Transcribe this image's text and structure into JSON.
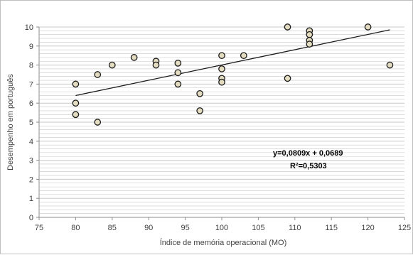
{
  "chart_data": {
    "type": "scatter",
    "title": "",
    "xlabel": "Índice de memória operacional (MO)",
    "ylabel": "Desempenho em português",
    "xlim": [
      75,
      125
    ],
    "ylim": [
      0,
      10
    ],
    "x_ticks": [
      75,
      80,
      85,
      90,
      95,
      100,
      105,
      110,
      115,
      120,
      125
    ],
    "y_ticks": [
      0,
      1,
      2,
      3,
      4,
      5,
      6,
      7,
      8,
      9,
      10
    ],
    "grid": true,
    "legend": "none",
    "points": [
      {
        "x": 80,
        "y": 7.0
      },
      {
        "x": 80,
        "y": 6.0
      },
      {
        "x": 80,
        "y": 5.4
      },
      {
        "x": 83,
        "y": 7.5
      },
      {
        "x": 83,
        "y": 5.0
      },
      {
        "x": 85,
        "y": 8.0
      },
      {
        "x": 88,
        "y": 8.4
      },
      {
        "x": 91,
        "y": 8.2
      },
      {
        "x": 91,
        "y": 8.0
      },
      {
        "x": 94,
        "y": 8.1
      },
      {
        "x": 94,
        "y": 7.6
      },
      {
        "x": 94,
        "y": 7.0
      },
      {
        "x": 97,
        "y": 6.5
      },
      {
        "x": 97,
        "y": 5.6
      },
      {
        "x": 100,
        "y": 8.5
      },
      {
        "x": 100,
        "y": 7.8
      },
      {
        "x": 100,
        "y": 7.3
      },
      {
        "x": 100,
        "y": 7.1
      },
      {
        "x": 103,
        "y": 8.5
      },
      {
        "x": 109,
        "y": 10.0
      },
      {
        "x": 109,
        "y": 7.3
      },
      {
        "x": 112,
        "y": 9.8
      },
      {
        "x": 112,
        "y": 9.6
      },
      {
        "x": 112,
        "y": 9.3
      },
      {
        "x": 112,
        "y": 9.1
      },
      {
        "x": 120,
        "y": 10.0
      },
      {
        "x": 123,
        "y": 8.0
      }
    ],
    "trendline": {
      "x": [
        80,
        123
      ],
      "y": [
        6.4,
        9.85
      ]
    },
    "annotations": {
      "equation": "y=0,0809x + 0,0689",
      "r_squared": "R²=0,5303"
    },
    "colors": {
      "marker_fill": "#e3dcc0",
      "marker_stroke": "#1a1a1a",
      "trendline": "#1a1a1a",
      "grid": "#c8c8c8",
      "axis": "#8c8c8c"
    }
  }
}
